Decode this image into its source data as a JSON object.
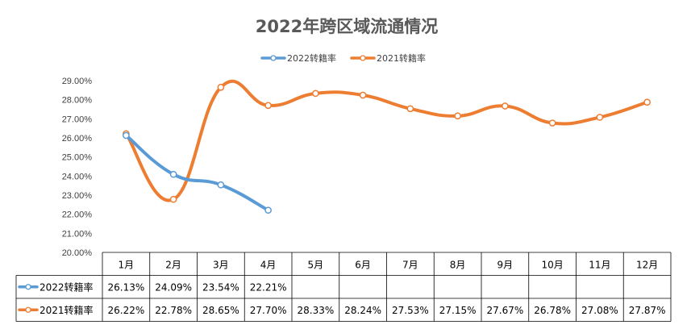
{
  "chart_data": {
    "type": "line",
    "title": "2022年跨区域流通情况",
    "categories": [
      "1月",
      "2月",
      "3月",
      "4月",
      "5月",
      "6月",
      "7月",
      "8月",
      "9月",
      "10月",
      "11月",
      "12月"
    ],
    "series": [
      {
        "name": "2022转籍率",
        "color": "#5b9bd5",
        "values": [
          26.13,
          24.09,
          23.54,
          22.21,
          null,
          null,
          null,
          null,
          null,
          null,
          null,
          null
        ],
        "labels": [
          "26.13%",
          "24.09%",
          "23.54%",
          "22.21%",
          "",
          "",
          "",
          "",
          "",
          "",
          "",
          ""
        ]
      },
      {
        "name": "2021转籍率",
        "color": "#ed7d31",
        "values": [
          26.22,
          22.78,
          28.65,
          27.7,
          28.33,
          28.24,
          27.53,
          27.15,
          27.67,
          26.78,
          27.08,
          27.87
        ],
        "labels": [
          "26.22%",
          "22.78%",
          "28.65%",
          "27.70%",
          "28.33%",
          "28.24%",
          "27.53%",
          "27.15%",
          "27.67%",
          "26.78%",
          "27.08%",
          "27.87%"
        ]
      }
    ],
    "ylim": [
      20,
      29
    ],
    "yticks": [
      "20.00%",
      "21.00%",
      "22.00%",
      "23.00%",
      "24.00%",
      "25.00%",
      "26.00%",
      "27.00%",
      "28.00%",
      "29.00%"
    ],
    "legend_position": "top",
    "grid": false,
    "smooth": true,
    "data_table": true
  }
}
